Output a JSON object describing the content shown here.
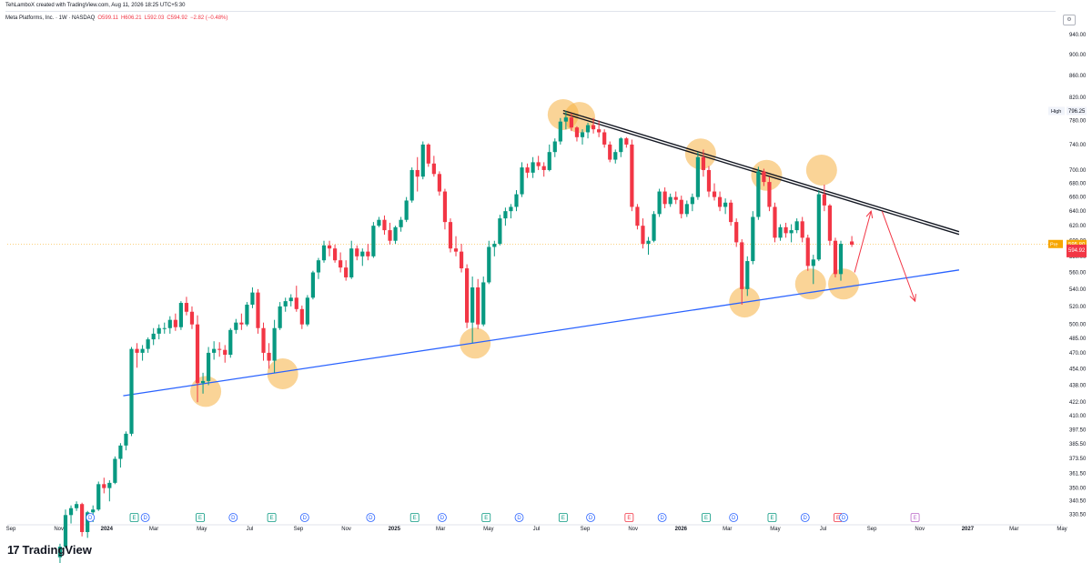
{
  "credit": "TehLamboX created with TradingView.com, Aug 11, 2026 18:25 UTC+5:30",
  "legend": {
    "symbol": "Meta Platforms, Inc. · 1W · NASDAQ",
    "open": "O599.11",
    "high": "H606.21",
    "low": "L592.03",
    "close": "C594.92",
    "change": "−2.82 (−0.48%)"
  },
  "brand": {
    "logo": "17",
    "name": "TradingView"
  },
  "colors": {
    "up": "#089981",
    "down": "#f23645",
    "support": "#2962ff",
    "resistance": "#131722",
    "highlight": "#f5b041",
    "arrow": "#f23645",
    "price_line": "#f7a600"
  },
  "chart_data": {
    "type": "candlestick",
    "interval": "1W",
    "y_scale": "log",
    "ylim": [
      325,
      965
    ],
    "y_ticks": [
      "940.00",
      "900.00",
      "860.00",
      "820.00",
      "780.00",
      "740.00",
      "700.00",
      "680.00",
      "660.00",
      "640.00",
      "620.00",
      "600.00",
      "580.00",
      "560.00",
      "540.00",
      "520.00",
      "500.00",
      "485.00",
      "470.00",
      "454.00",
      "438.00",
      "422.00",
      "410.00",
      "397.50",
      "385.50",
      "373.50",
      "361.50",
      "350.00",
      "340.50",
      "330.50"
    ],
    "x_labels": [
      {
        "label": "Sep",
        "date": "2023-09-01",
        "bold": false
      },
      {
        "label": "Nov",
        "date": "2023-11-01",
        "bold": false
      },
      {
        "label": "2024",
        "date": "2024-01-01",
        "bold": true
      },
      {
        "label": "Mar",
        "date": "2024-03-01",
        "bold": false
      },
      {
        "label": "May",
        "date": "2024-05-01",
        "bold": false
      },
      {
        "label": "Jul",
        "date": "2024-07-01",
        "bold": false
      },
      {
        "label": "Sep",
        "date": "2024-09-01",
        "bold": false
      },
      {
        "label": "Nov",
        "date": "2024-11-01",
        "bold": false
      },
      {
        "label": "2025",
        "date": "2025-01-01",
        "bold": true
      },
      {
        "label": "Mar",
        "date": "2025-03-01",
        "bold": false
      },
      {
        "label": "May",
        "date": "2025-05-01",
        "bold": false
      },
      {
        "label": "Jul",
        "date": "2025-07-01",
        "bold": false
      },
      {
        "label": "Sep",
        "date": "2025-09-01",
        "bold": false
      },
      {
        "label": "Nov",
        "date": "2025-11-01",
        "bold": false
      },
      {
        "label": "2026",
        "date": "2026-01-01",
        "bold": true
      },
      {
        "label": "Mar",
        "date": "2026-03-01",
        "bold": false
      },
      {
        "label": "May",
        "date": "2026-05-01",
        "bold": false
      },
      {
        "label": "Jul",
        "date": "2026-07-01",
        "bold": false
      },
      {
        "label": "Sep",
        "date": "2026-09-01",
        "bold": false
      },
      {
        "label": "Nov",
        "date": "2026-11-01",
        "bold": false
      },
      {
        "label": "2027",
        "date": "2027-01-01",
        "bold": true
      },
      {
        "label": "Mar",
        "date": "2027-03-01",
        "bold": false
      },
      {
        "label": "May",
        "date": "2027-05-01",
        "bold": false
      }
    ],
    "price_labels": [
      {
        "text": "High",
        "value": "796.25",
        "price": 796.25,
        "style": "high"
      },
      {
        "text": "Pre",
        "value": "595.80",
        "price": 595.8,
        "style": "pre"
      },
      {
        "text": "",
        "value": "594.92",
        "price": 588,
        "style": "last"
      }
    ],
    "candles": [
      [
        "2023-10-30",
        301,
        310,
        296,
        308
      ],
      [
        "2023-11-06",
        308,
        334,
        307,
        330
      ],
      [
        "2023-11-13",
        330,
        337,
        324,
        335
      ],
      [
        "2023-11-20",
        335,
        340,
        333,
        338
      ],
      [
        "2023-11-27",
        338,
        339,
        315,
        318
      ],
      [
        "2023-12-04",
        318,
        333,
        314,
        332
      ],
      [
        "2023-12-11",
        332,
        337,
        325,
        334
      ],
      [
        "2023-12-18",
        334,
        355,
        333,
        353
      ],
      [
        "2023-12-25",
        353,
        358,
        346,
        350
      ],
      [
        "2024-01-01",
        350,
        356,
        340,
        354
      ],
      [
        "2024-01-08",
        354,
        375,
        353,
        373
      ],
      [
        "2024-01-15",
        373,
        386,
        366,
        384
      ],
      [
        "2024-01-22",
        384,
        396,
        380,
        394
      ],
      [
        "2024-01-29",
        394,
        476,
        392,
        474
      ],
      [
        "2024-02-05",
        474,
        480,
        455,
        470
      ],
      [
        "2024-02-12",
        470,
        478,
        462,
        474
      ],
      [
        "2024-02-19",
        474,
        486,
        470,
        484
      ],
      [
        "2024-02-26",
        484,
        496,
        478,
        490
      ],
      [
        "2024-03-04",
        490,
        500,
        484,
        496
      ],
      [
        "2024-03-11",
        496,
        502,
        490,
        496
      ],
      [
        "2024-03-18",
        496,
        509,
        490,
        505
      ],
      [
        "2024-03-25",
        505,
        512,
        493,
        497
      ],
      [
        "2024-04-01",
        497,
        526,
        494,
        524
      ],
      [
        "2024-04-08",
        524,
        531,
        510,
        514
      ],
      [
        "2024-04-15",
        514,
        520,
        495,
        500
      ],
      [
        "2024-04-22",
        500,
        510,
        422,
        440
      ],
      [
        "2024-04-29",
        440,
        450,
        430,
        442
      ],
      [
        "2024-05-06",
        442,
        476,
        438,
        470
      ],
      [
        "2024-05-13",
        470,
        482,
        463,
        474
      ],
      [
        "2024-05-20",
        474,
        481,
        466,
        473
      ],
      [
        "2024-05-27",
        473,
        478,
        460,
        468
      ],
      [
        "2024-06-03",
        468,
        496,
        465,
        494
      ],
      [
        "2024-06-10",
        494,
        506,
        490,
        502
      ],
      [
        "2024-06-17",
        502,
        512,
        494,
        500
      ],
      [
        "2024-06-24",
        500,
        525,
        498,
        522
      ],
      [
        "2024-07-01",
        522,
        542,
        518,
        536
      ],
      [
        "2024-07-08",
        536,
        540,
        490,
        496
      ],
      [
        "2024-07-15",
        496,
        502,
        462,
        470
      ],
      [
        "2024-07-22",
        470,
        480,
        454,
        462
      ],
      [
        "2024-07-29",
        462,
        505,
        450,
        496
      ],
      [
        "2024-08-05",
        496,
        525,
        494,
        520
      ],
      [
        "2024-08-12",
        520,
        530,
        514,
        526
      ],
      [
        "2024-08-19",
        526,
        534,
        520,
        530
      ],
      [
        "2024-08-26",
        530,
        544,
        514,
        517
      ],
      [
        "2024-09-02",
        517,
        521,
        495,
        500
      ],
      [
        "2024-09-09",
        500,
        533,
        498,
        530
      ],
      [
        "2024-09-16",
        530,
        562,
        528,
        560
      ],
      [
        "2024-09-23",
        560,
        578,
        552,
        575
      ],
      [
        "2024-09-30",
        575,
        600,
        572,
        594
      ],
      [
        "2024-10-07",
        594,
        600,
        580,
        590
      ],
      [
        "2024-10-14",
        590,
        595,
        572,
        575
      ],
      [
        "2024-10-21",
        575,
        585,
        560,
        566
      ],
      [
        "2024-10-28",
        566,
        575,
        550,
        554
      ],
      [
        "2024-11-04",
        554,
        600,
        552,
        590
      ],
      [
        "2024-11-11",
        590,
        594,
        575,
        580
      ],
      [
        "2024-11-18",
        580,
        590,
        568,
        586
      ],
      [
        "2024-11-25",
        586,
        596,
        575,
        580
      ],
      [
        "2024-12-02",
        580,
        625,
        578,
        620
      ],
      [
        "2024-12-09",
        620,
        632,
        618,
        628
      ],
      [
        "2024-12-16",
        628,
        634,
        608,
        614
      ],
      [
        "2024-12-23",
        614,
        624,
        595,
        600
      ],
      [
        "2024-12-30",
        600,
        620,
        596,
        618
      ],
      [
        "2025-01-06",
        618,
        632,
        612,
        628
      ],
      [
        "2025-01-13",
        628,
        660,
        625,
        655
      ],
      [
        "2025-01-20",
        655,
        704,
        652,
        700
      ],
      [
        "2025-01-27",
        700,
        720,
        668,
        690
      ],
      [
        "2025-02-03",
        690,
        745,
        686,
        740
      ],
      [
        "2025-02-10",
        740,
        742,
        705,
        710
      ],
      [
        "2025-02-17",
        710,
        722,
        690,
        694
      ],
      [
        "2025-02-24",
        694,
        698,
        662,
        668
      ],
      [
        "2025-03-03",
        668,
        672,
        615,
        625
      ],
      [
        "2025-03-10",
        625,
        630,
        585,
        590
      ],
      [
        "2025-03-17",
        590,
        606,
        580,
        586
      ],
      [
        "2025-03-24",
        586,
        596,
        560,
        565
      ],
      [
        "2025-03-31",
        565,
        570,
        496,
        502
      ],
      [
        "2025-04-07",
        502,
        555,
        480,
        542
      ],
      [
        "2025-04-14",
        542,
        552,
        495,
        500
      ],
      [
        "2025-04-21",
        500,
        555,
        498,
        548
      ],
      [
        "2025-04-28",
        548,
        600,
        546,
        592
      ],
      [
        "2025-05-05",
        592,
        600,
        580,
        596
      ],
      [
        "2025-05-12",
        596,
        635,
        594,
        630
      ],
      [
        "2025-05-19",
        630,
        645,
        620,
        640
      ],
      [
        "2025-05-26",
        640,
        650,
        630,
        646
      ],
      [
        "2025-06-02",
        646,
        670,
        640,
        664
      ],
      [
        "2025-06-09",
        664,
        712,
        660,
        704
      ],
      [
        "2025-06-16",
        704,
        710,
        688,
        696
      ],
      [
        "2025-06-23",
        696,
        720,
        688,
        712
      ],
      [
        "2025-06-30",
        712,
        722,
        700,
        706
      ],
      [
        "2025-07-07",
        706,
        712,
        690,
        700
      ],
      [
        "2025-07-14",
        700,
        740,
        698,
        728
      ],
      [
        "2025-07-21",
        728,
        750,
        720,
        745
      ],
      [
        "2025-07-28",
        745,
        784,
        740,
        778
      ],
      [
        "2025-08-04",
        778,
        796,
        765,
        785
      ],
      [
        "2025-08-11",
        785,
        792,
        762,
        768
      ],
      [
        "2025-08-18",
        768,
        770,
        745,
        752
      ],
      [
        "2025-08-25",
        752,
        765,
        740,
        760
      ],
      [
        "2025-09-01",
        760,
        776,
        750,
        772
      ],
      [
        "2025-09-08",
        772,
        784,
        758,
        765
      ],
      [
        "2025-09-15",
        765,
        780,
        752,
        760
      ],
      [
        "2025-09-22",
        760,
        765,
        735,
        740
      ],
      [
        "2025-09-29",
        740,
        745,
        712,
        716
      ],
      [
        "2025-10-06",
        716,
        732,
        710,
        728
      ],
      [
        "2025-10-13",
        728,
        752,
        720,
        750
      ],
      [
        "2025-10-20",
        750,
        752,
        735,
        740
      ],
      [
        "2025-10-27",
        740,
        748,
        640,
        646
      ],
      [
        "2025-11-03",
        646,
        650,
        615,
        620
      ],
      [
        "2025-11-10",
        620,
        630,
        590,
        596
      ],
      [
        "2025-11-17",
        596,
        605,
        582,
        600
      ],
      [
        "2025-11-24",
        600,
        640,
        598,
        636
      ],
      [
        "2025-12-01",
        636,
        672,
        632,
        668
      ],
      [
        "2025-12-08",
        668,
        674,
        644,
        650
      ],
      [
        "2025-12-15",
        650,
        665,
        646,
        660
      ],
      [
        "2025-12-22",
        660,
        668,
        650,
        656
      ],
      [
        "2025-12-29",
        656,
        662,
        630,
        636
      ],
      [
        "2026-01-05",
        636,
        655,
        632,
        650
      ],
      [
        "2026-01-12",
        650,
        665,
        640,
        660
      ],
      [
        "2026-01-19",
        660,
        728,
        656,
        720
      ],
      [
        "2026-01-26",
        720,
        732,
        690,
        700
      ],
      [
        "2026-02-02",
        700,
        706,
        660,
        668
      ],
      [
        "2026-02-09",
        668,
        680,
        655,
        660
      ],
      [
        "2026-02-16",
        660,
        668,
        640,
        646
      ],
      [
        "2026-02-23",
        646,
        658,
        636,
        652
      ],
      [
        "2026-03-02",
        652,
        656,
        620,
        625
      ],
      [
        "2026-03-09",
        625,
        630,
        592,
        598
      ],
      [
        "2026-03-16",
        598,
        602,
        522,
        540
      ],
      [
        "2026-03-23",
        540,
        580,
        532,
        574
      ],
      [
        "2026-03-30",
        574,
        640,
        570,
        632
      ],
      [
        "2026-04-06",
        632,
        705,
        628,
        698
      ],
      [
        "2026-04-13",
        698,
        702,
        676,
        682
      ],
      [
        "2026-04-20",
        682,
        690,
        640,
        646
      ],
      [
        "2026-04-27",
        646,
        652,
        598,
        604
      ],
      [
        "2026-05-04",
        604,
        622,
        600,
        618
      ],
      [
        "2026-05-11",
        618,
        624,
        604,
        610
      ],
      [
        "2026-05-18",
        610,
        622,
        598,
        614
      ],
      [
        "2026-05-25",
        614,
        630,
        610,
        626
      ],
      [
        "2026-06-01",
        626,
        632,
        598,
        604
      ],
      [
        "2026-06-08",
        604,
        608,
        562,
        568
      ],
      [
        "2026-06-15",
        568,
        582,
        546,
        576
      ],
      [
        "2026-06-22",
        576,
        670,
        574,
        664
      ],
      [
        "2026-06-29",
        664,
        678,
        640,
        648
      ],
      [
        "2026-07-06",
        648,
        650,
        594,
        600
      ],
      [
        "2026-07-13",
        600,
        604,
        554,
        558
      ],
      [
        "2026-07-20",
        558,
        600,
        550,
        596
      ],
      [
        "2026-08-03",
        599.11,
        606.21,
        592.03,
        594.92
      ]
    ],
    "markers": [
      {
        "date": "2023-12-11",
        "type": "D"
      },
      {
        "date": "2024-02-05",
        "type": "E"
      },
      {
        "date": "2024-02-19",
        "type": "D"
      },
      {
        "date": "2024-04-29",
        "type": "E"
      },
      {
        "date": "2024-06-10",
        "type": "D"
      },
      {
        "date": "2024-07-29",
        "type": "E"
      },
      {
        "date": "2024-09-09",
        "type": "D"
      },
      {
        "date": "2024-12-02",
        "type": "D"
      },
      {
        "date": "2025-01-27",
        "type": "E"
      },
      {
        "date": "2025-03-03",
        "type": "D"
      },
      {
        "date": "2025-04-28",
        "type": "E"
      },
      {
        "date": "2025-06-09",
        "type": "D"
      },
      {
        "date": "2025-08-04",
        "type": "E"
      },
      {
        "date": "2025-09-08",
        "type": "D"
      },
      {
        "date": "2025-10-27",
        "type": "E"
      },
      {
        "date": "2025-12-08",
        "type": "D"
      },
      {
        "date": "2026-02-02",
        "type": "E"
      },
      {
        "date": "2026-03-09",
        "type": "D"
      },
      {
        "date": "2026-04-27",
        "type": "E"
      },
      {
        "date": "2026-06-08",
        "type": "D"
      },
      {
        "date": "2026-07-20",
        "type": "E"
      },
      {
        "date": "2026-07-27",
        "type": "D"
      },
      {
        "date": "2026-10-26",
        "type": "E"
      }
    ],
    "support_line": {
      "from": {
        "date": "2024-01-22",
        "price": 428
      },
      "to": {
        "date": "2026-12-21",
        "price": 563
      }
    },
    "resistance_line": {
      "from": {
        "date": "2025-08-04",
        "price": 797
      },
      "to": {
        "date": "2026-12-21",
        "price": 612
      }
    },
    "highlight_points": [
      {
        "date": "2024-05-06",
        "price": 432
      },
      {
        "date": "2024-08-12",
        "price": 449
      },
      {
        "date": "2025-04-14",
        "price": 480
      },
      {
        "date": "2025-08-04",
        "price": 790
      },
      {
        "date": "2025-08-25",
        "price": 785
      },
      {
        "date": "2026-01-26",
        "price": 725
      },
      {
        "date": "2026-03-23",
        "price": 525
      },
      {
        "date": "2026-04-20",
        "price": 692
      },
      {
        "date": "2026-06-15",
        "price": 546
      },
      {
        "date": "2026-06-29",
        "price": 700
      },
      {
        "date": "2026-07-27",
        "price": 546
      }
    ],
    "arrows": [
      {
        "from": {
          "date": "2026-08-10",
          "price": 560
        },
        "to": {
          "date": "2026-08-31",
          "price": 640
        }
      },
      {
        "from": {
          "date": "2026-09-14",
          "price": 640
        },
        "to": {
          "date": "2026-10-26",
          "price": 526
        }
      }
    ]
  }
}
